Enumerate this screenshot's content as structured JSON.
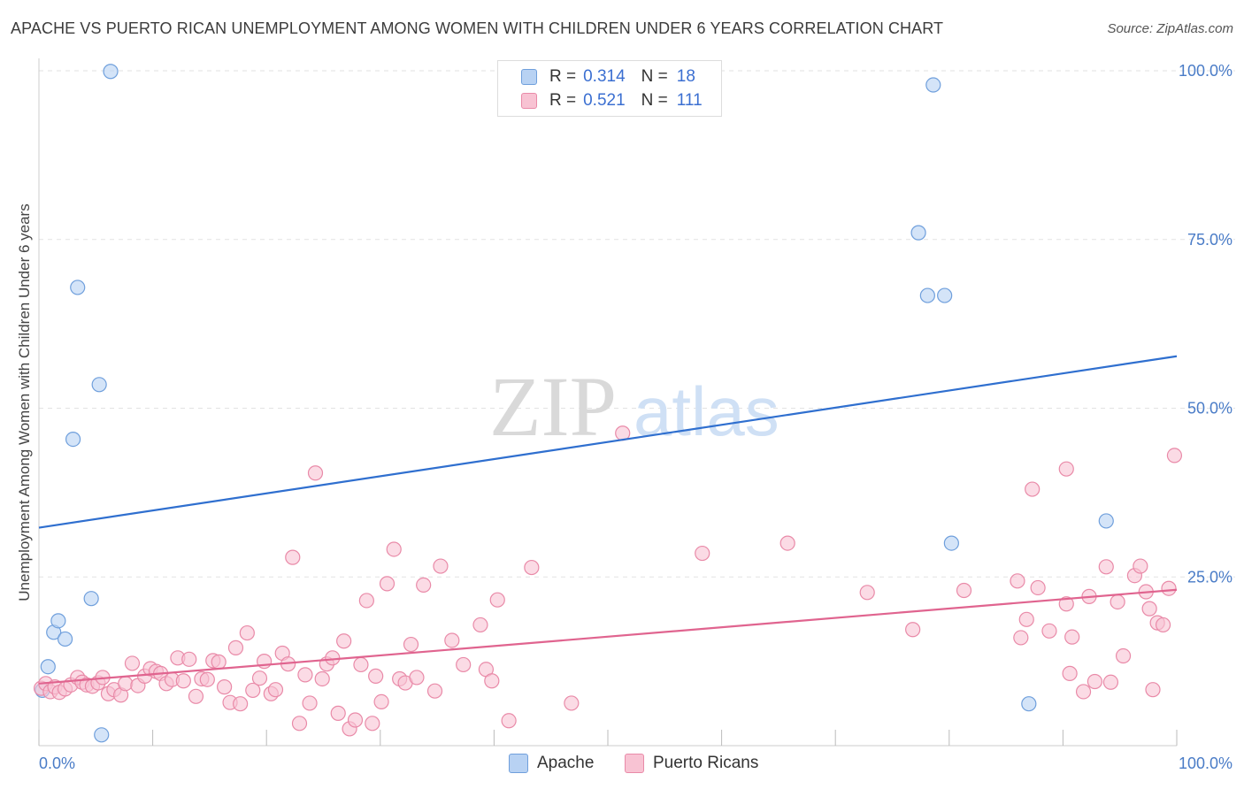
{
  "header": {
    "title": "APACHE VS PUERTO RICAN UNEMPLOYMENT AMONG WOMEN WITH CHILDREN UNDER 6 YEARS CORRELATION CHART",
    "source": "Source: ZipAtlas.com"
  },
  "watermark": {
    "zip": "ZIP",
    "atlas": "atlas"
  },
  "legend": {
    "r_label": "R =",
    "n_label": "N =",
    "items": [
      {
        "r": "0.314",
        "n": "18"
      },
      {
        "r": "0.521",
        "n": "111"
      }
    ]
  },
  "colors": {
    "apache_fill": "#b8d2f3",
    "apache_stroke": "#6f9fdc",
    "apache_line": "#2f6fcf",
    "pr_fill": "#f8c3d3",
    "pr_stroke": "#e98aa8",
    "pr_line": "#e0648f",
    "axis_label": "#4a7cc7",
    "grid": "#e2e2e2"
  },
  "chart_data": {
    "type": "scatter",
    "title": "APACHE VS PUERTO RICAN UNEMPLOYMENT AMONG WOMEN WITH CHILDREN UNDER 6 YEARS CORRELATION CHART",
    "xlabel": "",
    "ylabel": "Unemployment Among Women with Children Under 6 years",
    "xlim": [
      0,
      100
    ],
    "ylim": [
      0,
      100
    ],
    "x_tick_labels": [
      "0.0%",
      "100.0%"
    ],
    "y_ticks": [
      25,
      50,
      75,
      100
    ],
    "y_tick_labels": [
      "25.0%",
      "50.0%",
      "75.0%",
      "100.0%"
    ],
    "grid": true,
    "legend_position": "top-center",
    "series": [
      {
        "name": "Apache",
        "r": 0.314,
        "n": 18,
        "trend": {
          "x0": 0,
          "y0": 32.3,
          "x1": 100,
          "y1": 57.7
        },
        "points": [
          [
            0.3,
            8.2
          ],
          [
            0.8,
            11.7
          ],
          [
            1.3,
            16.8
          ],
          [
            1.7,
            18.5
          ],
          [
            2.3,
            15.8
          ],
          [
            3.0,
            45.4
          ],
          [
            3.4,
            67.9
          ],
          [
            4.6,
            21.8
          ],
          [
            5.5,
            1.6
          ],
          [
            5.3,
            53.5
          ],
          [
            6.3,
            99.9
          ],
          [
            77.3,
            76.0
          ],
          [
            78.1,
            66.7
          ],
          [
            78.6,
            97.9
          ],
          [
            79.6,
            66.7
          ],
          [
            80.2,
            30.0
          ],
          [
            87.0,
            6.2
          ],
          [
            93.8,
            33.3
          ]
        ]
      },
      {
        "name": "Puerto Ricans",
        "r": 0.521,
        "n": 111,
        "trend": {
          "x0": 0,
          "y0": 9.2,
          "x1": 100,
          "y1": 23.1
        },
        "points": [
          [
            0.2,
            8.5
          ],
          [
            0.6,
            9.2
          ],
          [
            1.0,
            8.0
          ],
          [
            1.4,
            8.7
          ],
          [
            1.8,
            7.9
          ],
          [
            2.3,
            8.4
          ],
          [
            2.8,
            9.0
          ],
          [
            3.4,
            10.1
          ],
          [
            3.8,
            9.4
          ],
          [
            4.2,
            9.0
          ],
          [
            4.7,
            8.8
          ],
          [
            5.2,
            9.3
          ],
          [
            5.6,
            10.1
          ],
          [
            6.1,
            7.7
          ],
          [
            6.6,
            8.3
          ],
          [
            7.2,
            7.5
          ],
          [
            7.6,
            9.2
          ],
          [
            8.2,
            12.2
          ],
          [
            8.7,
            8.9
          ],
          [
            9.3,
            10.3
          ],
          [
            9.8,
            11.4
          ],
          [
            10.3,
            11.0
          ],
          [
            10.7,
            10.7
          ],
          [
            11.2,
            9.2
          ],
          [
            11.7,
            9.8
          ],
          [
            12.2,
            13.0
          ],
          [
            12.7,
            9.6
          ],
          [
            13.2,
            12.8
          ],
          [
            13.8,
            7.3
          ],
          [
            14.3,
            9.9
          ],
          [
            14.8,
            9.8
          ],
          [
            15.3,
            12.6
          ],
          [
            15.8,
            12.4
          ],
          [
            16.3,
            8.7
          ],
          [
            16.8,
            6.4
          ],
          [
            17.3,
            14.5
          ],
          [
            17.7,
            6.2
          ],
          [
            18.3,
            16.7
          ],
          [
            18.8,
            8.2
          ],
          [
            19.4,
            10.0
          ],
          [
            19.8,
            12.5
          ],
          [
            20.4,
            7.7
          ],
          [
            20.8,
            8.3
          ],
          [
            21.4,
            13.7
          ],
          [
            21.9,
            12.1
          ],
          [
            22.3,
            27.9
          ],
          [
            22.9,
            3.3
          ],
          [
            23.4,
            10.5
          ],
          [
            23.8,
            6.3
          ],
          [
            24.3,
            40.4
          ],
          [
            24.9,
            9.9
          ],
          [
            25.3,
            12.1
          ],
          [
            25.8,
            13.0
          ],
          [
            26.3,
            4.8
          ],
          [
            26.8,
            15.5
          ],
          [
            27.3,
            2.5
          ],
          [
            27.8,
            3.8
          ],
          [
            28.3,
            12.0
          ],
          [
            28.8,
            21.5
          ],
          [
            29.3,
            3.3
          ],
          [
            29.6,
            10.3
          ],
          [
            30.1,
            6.5
          ],
          [
            30.6,
            24.0
          ],
          [
            31.2,
            29.1
          ],
          [
            31.7,
            9.9
          ],
          [
            32.2,
            9.3
          ],
          [
            32.7,
            15.0
          ],
          [
            33.2,
            10.1
          ],
          [
            33.8,
            23.8
          ],
          [
            34.8,
            8.1
          ],
          [
            35.3,
            26.6
          ],
          [
            36.3,
            15.6
          ],
          [
            37.3,
            12.0
          ],
          [
            38.8,
            17.9
          ],
          [
            39.3,
            11.3
          ],
          [
            39.8,
            9.6
          ],
          [
            40.3,
            21.6
          ],
          [
            41.3,
            3.7
          ],
          [
            43.3,
            26.4
          ],
          [
            46.8,
            6.3
          ],
          [
            51.3,
            46.3
          ],
          [
            58.3,
            28.5
          ],
          [
            65.8,
            30.0
          ],
          [
            72.8,
            22.7
          ],
          [
            76.8,
            17.2
          ],
          [
            81.3,
            23.0
          ],
          [
            86.0,
            24.4
          ],
          [
            86.3,
            16.0
          ],
          [
            86.8,
            18.7
          ],
          [
            87.3,
            38.0
          ],
          [
            87.8,
            23.4
          ],
          [
            88.8,
            17.0
          ],
          [
            90.3,
            21.0
          ],
          [
            90.6,
            10.7
          ],
          [
            90.8,
            16.1
          ],
          [
            91.8,
            8.0
          ],
          [
            92.3,
            22.1
          ],
          [
            92.8,
            9.5
          ],
          [
            93.8,
            26.5
          ],
          [
            94.2,
            9.4
          ],
          [
            94.8,
            21.3
          ],
          [
            95.3,
            13.3
          ],
          [
            96.3,
            25.2
          ],
          [
            96.8,
            26.6
          ],
          [
            97.3,
            22.8
          ],
          [
            97.6,
            20.3
          ],
          [
            97.9,
            8.3
          ],
          [
            98.3,
            18.2
          ],
          [
            98.8,
            17.9
          ],
          [
            99.3,
            23.3
          ],
          [
            99.8,
            43.0
          ],
          [
            90.3,
            41.0
          ]
        ]
      }
    ]
  }
}
